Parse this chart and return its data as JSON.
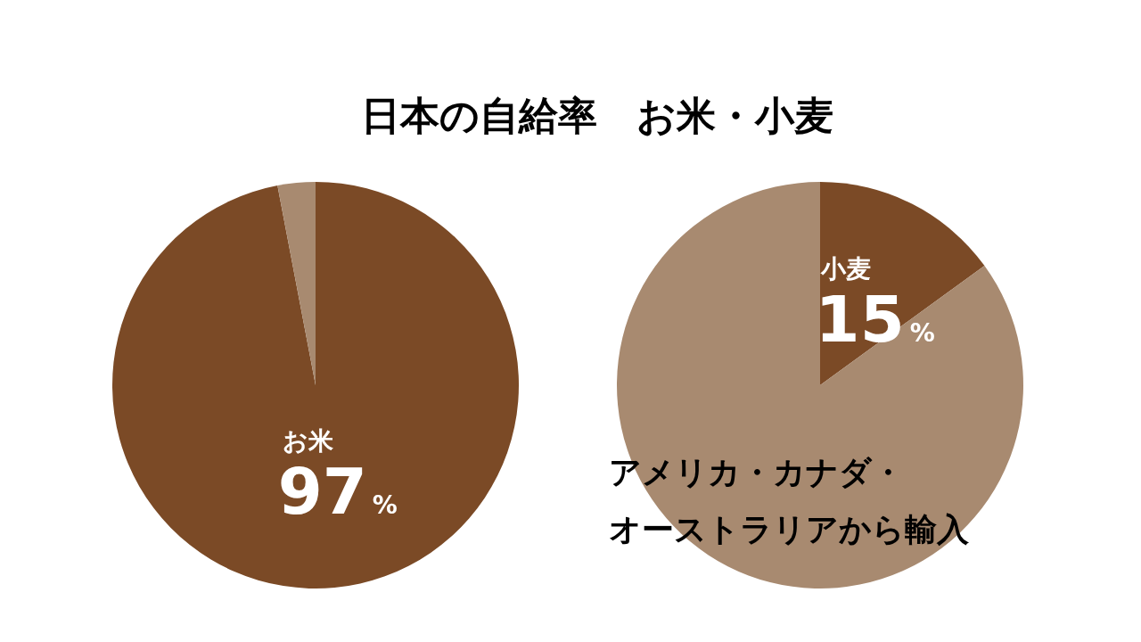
{
  "chart_data": [
    {
      "type": "pie",
      "title": "日本の自給率　お米・小麦",
      "categories": [
        "お米",
        null
      ],
      "values": [
        97,
        3
      ],
      "colors": [
        "#7b4a26",
        "#a88a70"
      ],
      "value_labels": [
        "97%",
        null
      ]
    },
    {
      "type": "pie",
      "categories": [
        "小麦",
        null
      ],
      "values": [
        15,
        85
      ],
      "colors": [
        "#7b4a26",
        "#a88a70"
      ],
      "value_labels": [
        "15%",
        null
      ],
      "annotations": [
        "アメリカ・カナダ・",
        "オーストラリアから輸入"
      ]
    }
  ]
}
